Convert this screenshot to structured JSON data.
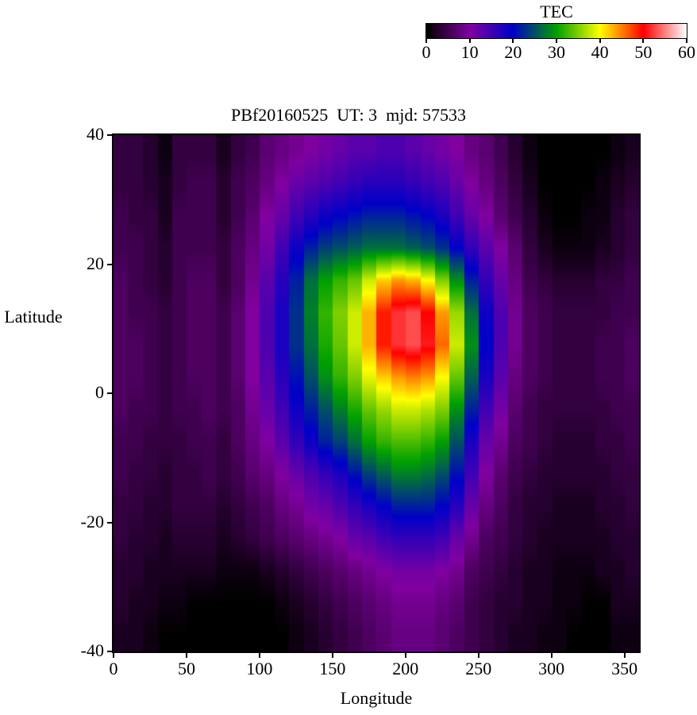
{
  "colorbar": {
    "title": "TEC",
    "min": 0,
    "max": 60,
    "ticks": [
      0,
      10,
      20,
      30,
      40,
      50,
      60
    ]
  },
  "plot": {
    "title": "PBf20160525  UT: 3  mjd: 57533",
    "xlabel": "Longitude",
    "ylabel": "Latitude",
    "xticks": [
      0,
      50,
      100,
      150,
      200,
      250,
      300,
      350
    ],
    "yticks": [
      40,
      20,
      0,
      -20,
      -40
    ]
  },
  "chart_data": {
    "type": "heatmap",
    "title": "PBf20160525  UT: 3  mjd: 57533",
    "xlabel": "Longitude",
    "ylabel": "Latitude",
    "zlabel": "TEC",
    "xlim": [
      0,
      360
    ],
    "ylim": [
      -40,
      40
    ],
    "zlim": [
      0,
      60
    ],
    "lon_start": 0,
    "lon_step": 10,
    "lat_start": 40,
    "lat_step": -5,
    "legend": "top horizontal colorbar labeled TEC, ticks 0-60 every 10",
    "palette_stops": [
      [
        0,
        "#000000"
      ],
      [
        10,
        "#8000a0"
      ],
      [
        20,
        "#0000c8"
      ],
      [
        30,
        "#00a000"
      ],
      [
        40,
        "#ffff00"
      ],
      [
        50,
        "#ff0000"
      ],
      [
        60,
        "#ffffff"
      ]
    ],
    "values": [
      [
        4,
        4,
        3,
        1,
        4,
        4,
        4,
        2,
        4,
        5,
        7,
        8,
        9,
        10,
        11,
        12,
        13,
        13,
        14,
        14,
        13,
        12,
        11,
        10,
        8,
        7,
        5,
        3,
        1,
        0,
        0,
        0,
        0,
        0,
        1,
        2
      ],
      [
        4,
        4,
        3,
        2,
        4,
        5,
        5,
        3,
        5,
        6,
        8,
        10,
        12,
        13,
        14,
        15,
        16,
        17,
        17,
        17,
        16,
        15,
        14,
        12,
        10,
        8,
        6,
        4,
        2,
        0,
        0,
        0,
        0,
        1,
        2,
        3
      ],
      [
        5,
        4,
        4,
        2,
        5,
        5,
        5,
        3,
        5,
        7,
        10,
        12,
        15,
        17,
        19,
        20,
        21,
        22,
        22,
        22,
        21,
        20,
        18,
        15,
        12,
        10,
        7,
        5,
        3,
        1,
        0,
        0,
        1,
        1,
        3,
        4
      ],
      [
        5,
        5,
        4,
        3,
        5,
        5,
        5,
        4,
        6,
        8,
        11,
        15,
        19,
        22,
        24,
        25,
        26,
        27,
        27,
        27,
        26,
        25,
        23,
        20,
        16,
        13,
        10,
        7,
        4,
        2,
        1,
        1,
        1,
        2,
        3,
        4
      ],
      [
        6,
        5,
        4,
        3,
        5,
        6,
        6,
        4,
        6,
        9,
        13,
        17,
        22,
        27,
        30,
        32,
        34,
        38,
        42,
        44,
        43,
        40,
        35,
        29,
        22,
        16,
        12,
        8,
        5,
        4,
        3,
        3,
        3,
        4,
        4,
        5
      ],
      [
        6,
        5,
        5,
        4,
        5,
        6,
        6,
        5,
        7,
        10,
        14,
        18,
        23,
        28,
        32,
        35,
        38,
        43,
        49,
        52,
        53,
        50,
        44,
        36,
        27,
        19,
        14,
        9,
        6,
        5,
        4,
        4,
        4,
        4,
        5,
        5
      ],
      [
        6,
        6,
        5,
        4,
        5,
        6,
        6,
        5,
        7,
        10,
        14,
        18,
        23,
        27,
        31,
        34,
        38,
        43,
        49,
        52,
        53,
        51,
        46,
        38,
        29,
        20,
        14,
        9,
        6,
        5,
        4,
        4,
        4,
        5,
        5,
        6
      ],
      [
        6,
        6,
        5,
        4,
        5,
        6,
        6,
        5,
        7,
        10,
        13,
        17,
        21,
        25,
        29,
        32,
        35,
        39,
        42,
        44,
        45,
        44,
        40,
        34,
        26,
        18,
        13,
        8,
        6,
        5,
        4,
        4,
        4,
        5,
        5,
        6
      ],
      [
        6,
        5,
        5,
        4,
        5,
        5,
        6,
        5,
        6,
        9,
        12,
        15,
        19,
        22,
        25,
        28,
        31,
        34,
        36,
        38,
        38,
        37,
        35,
        29,
        22,
        15,
        11,
        7,
        5,
        4,
        4,
        4,
        4,
        4,
        5,
        5
      ],
      [
        5,
        5,
        4,
        4,
        4,
        5,
        5,
        4,
        6,
        8,
        10,
        13,
        16,
        19,
        22,
        24,
        27,
        30,
        32,
        33,
        33,
        32,
        30,
        25,
        18,
        12,
        9,
        6,
        5,
        4,
        3,
        3,
        3,
        4,
        4,
        5
      ],
      [
        5,
        4,
        4,
        3,
        4,
        4,
        5,
        4,
        5,
        7,
        8,
        10,
        12,
        14,
        16,
        18,
        21,
        24,
        26,
        28,
        28,
        27,
        25,
        21,
        15,
        10,
        7,
        5,
        4,
        3,
        3,
        3,
        3,
        3,
        4,
        4
      ],
      [
        4,
        4,
        3,
        3,
        4,
        4,
        4,
        3,
        4,
        5,
        6,
        8,
        9,
        11,
        12,
        14,
        16,
        18,
        20,
        22,
        22,
        22,
        20,
        17,
        12,
        8,
        6,
        4,
        3,
        3,
        2,
        2,
        2,
        3,
        3,
        4
      ],
      [
        4,
        3,
        3,
        2,
        3,
        3,
        3,
        2,
        3,
        4,
        5,
        6,
        7,
        8,
        9,
        10,
        12,
        13,
        15,
        16,
        16,
        16,
        15,
        12,
        9,
        6,
        5,
        4,
        3,
        2,
        2,
        2,
        2,
        2,
        3,
        3
      ],
      [
        3,
        3,
        2,
        2,
        2,
        2,
        2,
        1,
        1,
        1,
        2,
        3,
        4,
        5,
        6,
        7,
        8,
        9,
        10,
        11,
        11,
        11,
        10,
        9,
        6,
        5,
        4,
        3,
        2,
        2,
        1,
        1,
        1,
        2,
        2,
        3
      ],
      [
        3,
        2,
        2,
        1,
        1,
        0,
        0,
        0,
        0,
        0,
        0,
        1,
        2,
        3,
        4,
        5,
        6,
        7,
        8,
        9,
        9,
        9,
        8,
        7,
        5,
        4,
        3,
        3,
        2,
        2,
        1,
        1,
        0,
        0,
        2,
        2
      ],
      [
        2,
        2,
        1,
        0,
        0,
        0,
        0,
        0,
        0,
        0,
        0,
        0,
        1,
        2,
        3,
        4,
        5,
        6,
        7,
        8,
        8,
        8,
        7,
        6,
        5,
        4,
        3,
        2,
        2,
        1,
        1,
        0,
        0,
        0,
        1,
        1
      ]
    ]
  }
}
